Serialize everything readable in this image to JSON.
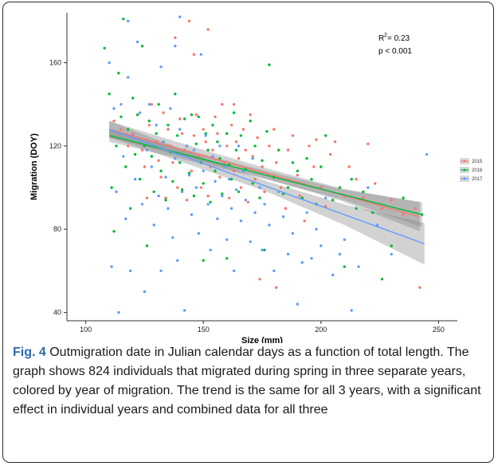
{
  "figure": {
    "caption_label": "Fig. 4",
    "caption_text": " Outmigration date in Julian calendar days as a function of total length. The graph shows 824 individuals that migrated during spring in three separate years, colored by year of migration. The trend is the same for all 3 years, with a significant effect in individual years and combined data for all three"
  },
  "annotation": {
    "r2_label": "R",
    "r2_exp": "2",
    "r2_value": " = 0.23",
    "p_value": "p < 0.001"
  },
  "chart_data": {
    "type": "scatter",
    "xlabel": "Size (mm)",
    "ylabel": "Migration (DOY)",
    "xlim": [
      92,
      258
    ],
    "ylim": [
      36,
      184
    ],
    "xticks": [
      100,
      150,
      200,
      250
    ],
    "yticks": [
      40,
      80,
      120,
      160
    ],
    "grid": false,
    "legend_position": "right",
    "series": [
      {
        "name": "2015",
        "color": "#f8766d",
        "trend": {
          "x": [
            110,
            242
          ],
          "y": [
            128,
            86
          ]
        },
        "band_halfwidth": [
          4,
          3,
          2.5,
          3,
          7
        ],
        "points": [
          [
            112,
            132
          ],
          [
            115,
            128
          ],
          [
            118,
            120
          ],
          [
            120,
            126
          ],
          [
            122,
            135
          ],
          [
            124,
            118
          ],
          [
            125,
            110
          ],
          [
            126,
            95
          ],
          [
            127,
            130
          ],
          [
            128,
            140
          ],
          [
            130,
            122
          ],
          [
            131,
            113
          ],
          [
            132,
            105
          ],
          [
            133,
            136
          ],
          [
            134,
            95
          ],
          [
            135,
            128
          ],
          [
            136,
            120
          ],
          [
            137,
            112
          ],
          [
            138,
            172
          ],
          [
            139,
            100
          ],
          [
            140,
            133
          ],
          [
            141,
            126
          ],
          [
            142,
            118
          ],
          [
            143,
            94
          ],
          [
            144,
            180
          ],
          [
            145,
            108
          ],
          [
            146,
            125
          ],
          [
            147,
            135
          ],
          [
            148,
            115
          ],
          [
            149,
            100
          ],
          [
            150,
            128
          ],
          [
            151,
            122
          ],
          [
            152,
            96
          ],
          [
            153,
            110
          ],
          [
            154,
            118
          ],
          [
            155,
            134
          ],
          [
            156,
            126
          ],
          [
            157,
            105
          ],
          [
            158,
            140
          ],
          [
            159,
            112
          ],
          [
            160,
            120
          ],
          [
            161,
            95
          ],
          [
            162,
            130
          ],
          [
            163,
            108
          ],
          [
            164,
            122
          ],
          [
            165,
            114
          ],
          [
            166,
            100
          ],
          [
            167,
            128
          ],
          [
            168,
            118
          ],
          [
            169,
            93
          ],
          [
            170,
            135
          ],
          [
            171,
            115
          ],
          [
            172,
            104
          ],
          [
            173,
            124
          ],
          [
            175,
            110
          ],
          [
            176,
            98
          ],
          [
            178,
            120
          ],
          [
            180,
            128
          ],
          [
            181,
            112
          ],
          [
            183,
            100
          ],
          [
            185,
            90
          ],
          [
            186,
            118
          ],
          [
            188,
            125
          ],
          [
            190,
            106
          ],
          [
            191,
            96
          ],
          [
            193,
            84
          ],
          [
            195,
            120
          ],
          [
            197,
            110
          ],
          [
            198,
            123
          ],
          [
            200,
            100
          ],
          [
            202,
            91
          ],
          [
            204,
            116
          ],
          [
            206,
            122
          ],
          [
            208,
            100
          ],
          [
            210,
            96
          ],
          [
            212,
            110
          ],
          [
            215,
            104
          ],
          [
            218,
            95
          ],
          [
            220,
            121
          ],
          [
            223,
            102
          ],
          [
            226,
            90
          ],
          [
            230,
            94
          ],
          [
            235,
            87
          ],
          [
            240,
            90
          ],
          [
            242,
            52
          ],
          [
            181,
            52
          ],
          [
            174,
            56
          ],
          [
            163,
            140
          ],
          [
            152,
            176
          ],
          [
            146,
            164
          ]
        ]
      },
      {
        "name": "2016",
        "color": "#00ba38",
        "trend": {
          "x": [
            110,
            243
          ],
          "y": [
            125,
            87
          ]
        },
        "band_halfwidth": [
          3,
          2.5,
          2,
          2.5,
          6
        ],
        "points": [
          [
            108,
            167
          ],
          [
            110,
            145
          ],
          [
            111,
            100
          ],
          [
            112,
            79
          ],
          [
            113,
            120
          ],
          [
            114,
            155
          ],
          [
            115,
            134
          ],
          [
            116,
            181
          ],
          [
            117,
            110
          ],
          [
            118,
            128
          ],
          [
            119,
            90
          ],
          [
            120,
            143
          ],
          [
            121,
            116
          ],
          [
            122,
            135
          ],
          [
            123,
            104
          ],
          [
            124,
            168
          ],
          [
            125,
            120
          ],
          [
            126,
            72
          ],
          [
            127,
            132
          ],
          [
            128,
            115
          ],
          [
            129,
            98
          ],
          [
            130,
            126
          ],
          [
            131,
            140
          ],
          [
            132,
            108
          ],
          [
            133,
            122
          ],
          [
            134,
            94
          ],
          [
            135,
            130
          ],
          [
            136,
            117
          ],
          [
            137,
            103
          ],
          [
            138,
            145
          ],
          [
            139,
            125
          ],
          [
            140,
            112
          ],
          [
            141,
            99
          ],
          [
            142,
            133
          ],
          [
            143,
            120
          ],
          [
            144,
            107
          ],
          [
            145,
            135
          ],
          [
            146,
            96
          ],
          [
            147,
            121
          ],
          [
            148,
            134
          ],
          [
            149,
            112
          ],
          [
            150,
            102
          ],
          [
            151,
            126
          ],
          [
            152,
            118
          ],
          [
            153,
            93
          ],
          [
            154,
            130
          ],
          [
            155,
            108
          ],
          [
            156,
            122
          ],
          [
            157,
            114
          ],
          [
            158,
            97
          ],
          [
            160,
            126
          ],
          [
            161,
            111
          ],
          [
            162,
            104
          ],
          [
            163,
            136
          ],
          [
            164,
            118
          ],
          [
            165,
            98
          ],
          [
            166,
            125
          ],
          [
            168,
            109
          ],
          [
            170,
            132
          ],
          [
            171,
            102
          ],
          [
            172,
            120
          ],
          [
            174,
            95
          ],
          [
            175,
            113
          ],
          [
            177,
            127
          ],
          [
            178,
            159
          ],
          [
            180,
            105
          ],
          [
            182,
            118
          ],
          [
            184,
            97
          ],
          [
            186,
            100
          ],
          [
            188,
            112
          ],
          [
            190,
            108
          ],
          [
            192,
            95
          ],
          [
            194,
            114
          ],
          [
            196,
            104
          ],
          [
            198,
            92
          ],
          [
            200,
            110
          ],
          [
            202,
            125
          ],
          [
            205,
            94
          ],
          [
            208,
            100
          ],
          [
            210,
            62
          ],
          [
            213,
            104
          ],
          [
            215,
            90
          ],
          [
            218,
            98
          ],
          [
            222,
            88
          ],
          [
            226,
            56
          ],
          [
            230,
            72
          ],
          [
            235,
            95
          ],
          [
            243,
            87
          ],
          [
            150,
            65
          ],
          [
            160,
            66
          ],
          [
            176,
            70
          ]
        ]
      },
      {
        "name": "2017",
        "color": "#619cff",
        "trend": {
          "x": [
            110,
            244
          ],
          "y": [
            128,
            73
          ]
        },
        "band_halfwidth": [
          4,
          3,
          2.5,
          5,
          10
        ],
        "points": [
          [
            110,
            160
          ],
          [
            111,
            62
          ],
          [
            112,
            138
          ],
          [
            113,
            98
          ],
          [
            114,
            40
          ],
          [
            115,
            140
          ],
          [
            116,
            115
          ],
          [
            117,
            85
          ],
          [
            118,
            153
          ],
          [
            119,
            60
          ],
          [
            120,
            125
          ],
          [
            121,
            104
          ],
          [
            122,
            170
          ],
          [
            123,
            136
          ],
          [
            124,
            92
          ],
          [
            125,
            50
          ],
          [
            126,
            118
          ],
          [
            127,
            140
          ],
          [
            128,
            110
          ],
          [
            129,
            82
          ],
          [
            130,
            130
          ],
          [
            131,
            96
          ],
          [
            132,
            60
          ],
          [
            133,
            122
          ],
          [
            134,
            105
          ],
          [
            135,
            90
          ],
          [
            136,
            138
          ],
          [
            137,
            76
          ],
          [
            138,
            114
          ],
          [
            139,
            65
          ],
          [
            140,
            128
          ],
          [
            141,
            98
          ],
          [
            142,
            41
          ],
          [
            143,
            120
          ],
          [
            144,
            106
          ],
          [
            145,
            87
          ],
          [
            146,
            118
          ],
          [
            147,
            100
          ],
          [
            148,
            78
          ],
          [
            149,
            164
          ],
          [
            150,
            108
          ],
          [
            151,
            125
          ],
          [
            152,
            92
          ],
          [
            153,
            70
          ],
          [
            154,
            115
          ],
          [
            155,
            103
          ],
          [
            156,
            85
          ],
          [
            157,
            120
          ],
          [
            158,
            96
          ],
          [
            159,
            110
          ],
          [
            160,
            75
          ],
          [
            161,
            104
          ],
          [
            162,
            90
          ],
          [
            163,
            60
          ],
          [
            164,
            99
          ],
          [
            165,
            120
          ],
          [
            166,
            84
          ],
          [
            167,
            108
          ],
          [
            168,
            94
          ],
          [
            170,
            74
          ],
          [
            171,
            114
          ],
          [
            172,
            88
          ],
          [
            174,
            100
          ],
          [
            175,
            70
          ],
          [
            176,
            92
          ],
          [
            178,
            82
          ],
          [
            180,
            60
          ],
          [
            182,
            98
          ],
          [
            184,
            86
          ],
          [
            186,
            68
          ],
          [
            188,
            78
          ],
          [
            190,
            44
          ],
          [
            192,
            64
          ],
          [
            194,
            88
          ],
          [
            196,
            66
          ],
          [
            198,
            80
          ],
          [
            200,
            72
          ],
          [
            202,
            95
          ],
          [
            205,
            58
          ],
          [
            208,
            68
          ],
          [
            210,
            75
          ],
          [
            213,
            41
          ],
          [
            216,
            62
          ],
          [
            220,
            100
          ],
          [
            224,
            82
          ],
          [
            230,
            68
          ],
          [
            245,
            116
          ],
          [
            118,
            180
          ],
          [
            140,
            182
          ],
          [
            138,
            168
          ],
          [
            132,
            158
          ]
        ]
      }
    ]
  }
}
